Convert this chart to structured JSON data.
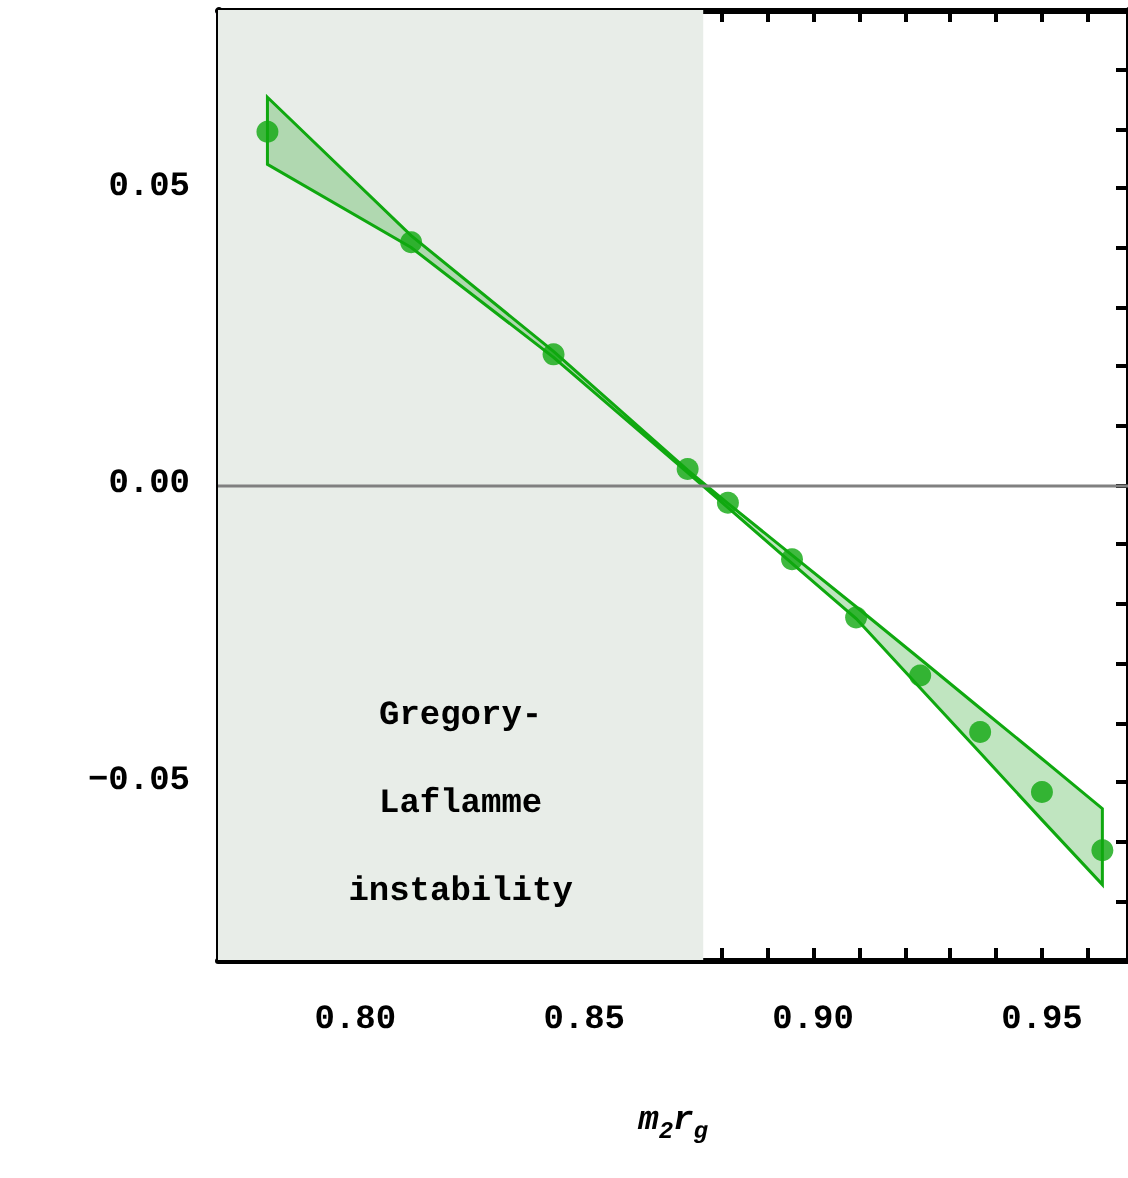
{
  "chart_data": {
    "type": "scatter",
    "xlabel": "m$_{2}$r$_{g}$",
    "xlim": [
      0.77,
      0.9688
    ],
    "xticks": [
      {
        "value": 0.78,
        "label": null
      },
      {
        "value": 0.79,
        "label": null
      },
      {
        "value": 0.8,
        "label": "0.80"
      },
      {
        "value": 0.81,
        "label": null
      },
      {
        "value": 0.82,
        "label": null
      },
      {
        "value": 0.83,
        "label": null
      },
      {
        "value": 0.84,
        "label": null
      },
      {
        "value": 0.85,
        "label": "0.85"
      },
      {
        "value": 0.86,
        "label": null
      },
      {
        "value": 0.87,
        "label": null
      },
      {
        "value": 0.88,
        "label": null
      },
      {
        "value": 0.89,
        "label": null
      },
      {
        "value": 0.9,
        "label": "0.90"
      },
      {
        "value": 0.91,
        "label": null
      },
      {
        "value": 0.92,
        "label": null
      },
      {
        "value": 0.93,
        "label": null
      },
      {
        "value": 0.94,
        "label": null
      },
      {
        "value": 0.95,
        "label": "0.95"
      },
      {
        "value": 0.96,
        "label": null
      }
    ],
    "ylim": [
      -0.08,
      0.08
    ],
    "yticks": [
      {
        "value": -0.07,
        "label": null
      },
      {
        "value": -0.06,
        "label": null
      },
      {
        "value": -0.05,
        "label": "−0.05"
      },
      {
        "value": -0.04,
        "label": null
      },
      {
        "value": -0.03,
        "label": null
      },
      {
        "value": -0.02,
        "label": null
      },
      {
        "value": -0.01,
        "label": null
      },
      {
        "value": 0,
        "label": "0.00"
      },
      {
        "value": 0.01,
        "label": null
      },
      {
        "value": 0.02,
        "label": null
      },
      {
        "value": 0.03,
        "label": null
      },
      {
        "value": 0.04,
        "label": null
      },
      {
        "value": 0.05,
        "label": "0.05"
      },
      {
        "value": 0.06,
        "label": null
      },
      {
        "value": 0.07,
        "label": null
      }
    ],
    "grid": false,
    "marker": "circle",
    "series": [
      {
        "color": "#0fa80f",
        "x": [
          0.7808,
          0.8122,
          0.8433,
          0.8726,
          0.8814,
          0.8954,
          0.9094,
          0.9234,
          0.9365,
          0.95,
          0.9632
        ],
        "values": [
          0.0595,
          0.0409,
          0.022,
          0.0027,
          -0.003,
          -0.0125,
          -0.0223,
          -0.0321,
          -0.0416,
          -0.0517,
          -0.0615
        ],
        "lower": [
          0.054,
          0.04,
          0.0215,
          0.0021,
          -0.0038,
          -0.0132,
          -0.0225,
          -0.0342,
          -0.0451,
          -0.0564,
          -0.0673
        ],
        "upper": [
          0.0653,
          0.042,
          0.0225,
          0.0025,
          -0.0031,
          -0.0118,
          -0.0205,
          -0.0293,
          -0.0376,
          -0.0461,
          -0.0545
        ]
      }
    ],
    "ref_lines": [
      {
        "axis": "y",
        "value": 0,
        "color": "#808080",
        "line_style": "solid"
      }
    ],
    "bands": [
      {
        "axis": "x",
        "from": 0.77,
        "to": 0.876,
        "label": "Gregory-Laflamme instability",
        "color": "#e8ede8"
      }
    ]
  }
}
